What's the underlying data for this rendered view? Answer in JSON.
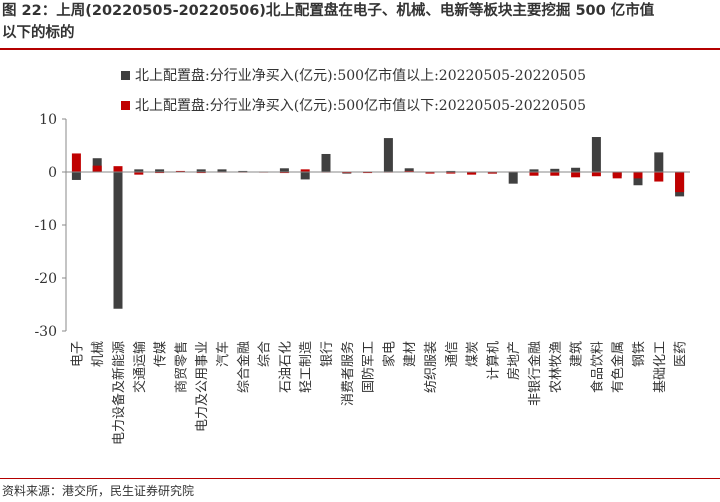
{
  "figure": {
    "title_line1": "图 22：上周(20220505-20220506)北上配置盘在电子、机械、电新等板块主要挖掘 500 亿市值",
    "title_line2": "以下的标的",
    "source": "资料来源：港交所，民生证券研究院"
  },
  "chart_data": {
    "type": "bar",
    "categories": [
      "电子",
      "机械",
      "电力设备及新能源",
      "交通运输",
      "传媒",
      "商贸零售",
      "电力及公用事业",
      "汽车",
      "综合金融",
      "综合",
      "石油石化",
      "轻工制造",
      "银行",
      "消费者服务",
      "国防军工",
      "家电",
      "建材",
      "纺织服装",
      "通信",
      "煤炭",
      "计算机",
      "房地产",
      "非银行金融",
      "农林牧渔",
      "建筑",
      "食品饮料",
      "有色金属",
      "钢铁",
      "基础化工",
      "医药"
    ],
    "series": [
      {
        "name": "北上配置盘:分行业净买入(亿元):500亿市值以上:20220505-20220505",
        "color": "#404040",
        "values": [
          -1.5,
          2.6,
          -25.8,
          0.5,
          0.5,
          0.1,
          0.5,
          0.5,
          0.2,
          0.1,
          0.7,
          -1.4,
          3.4,
          -0.3,
          0.1,
          6.4,
          0.7,
          -0.2,
          0.2,
          -0.3,
          -0.3,
          -2.2,
          0.5,
          0.6,
          0.8,
          6.6,
          -0.8,
          -2.5,
          3.7,
          -4.6
        ]
      },
      {
        "name": "北上配置盘:分行业净买入(亿元):500亿市值以下:20220505-20220505",
        "color": "#c00000",
        "values": [
          3.5,
          1.2,
          1.1,
          -0.5,
          -0.2,
          0.2,
          -0.2,
          -0.1,
          -0.1,
          -0.1,
          -0.2,
          0.5,
          -0.1,
          -0.2,
          -0.2,
          -0.1,
          0.2,
          -0.3,
          -0.3,
          -0.5,
          -0.3,
          0.1,
          -0.7,
          -0.7,
          -1.0,
          -0.8,
          -1.2,
          -1.2,
          -1.8,
          -3.8
        ]
      }
    ],
    "ylim": [
      -30,
      10
    ],
    "yticks": [
      10,
      0,
      -10,
      -20,
      -30
    ],
    "legend_position": "top-center",
    "grid": false
  }
}
